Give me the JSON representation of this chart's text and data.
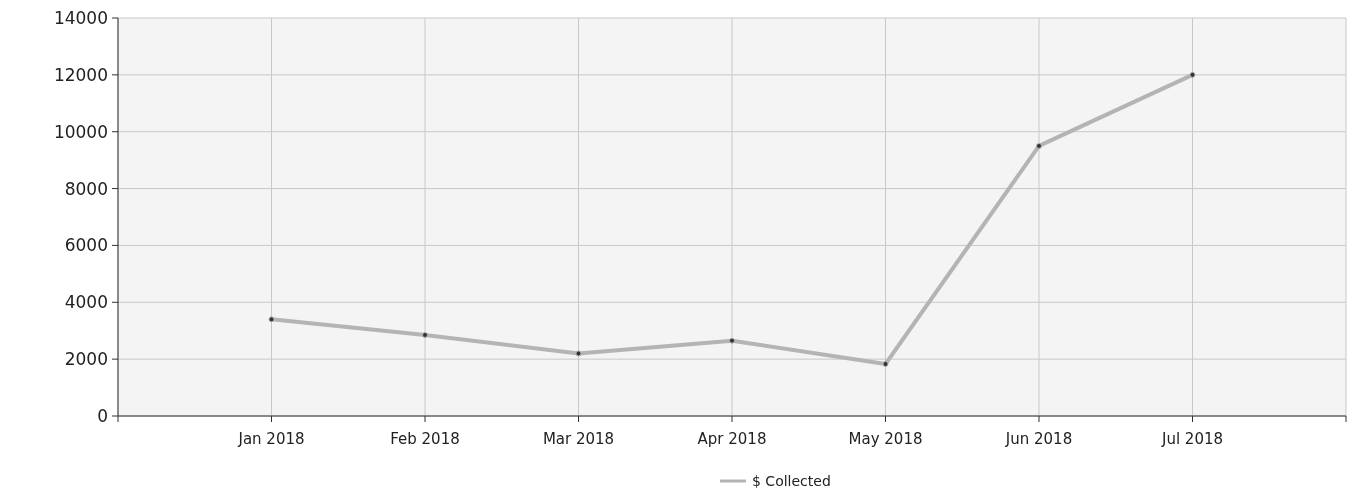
{
  "chart_data": {
    "type": "line",
    "categories": [
      null,
      "Jan 2018",
      "Feb 2018",
      "Mar 2018",
      "Apr 2018",
      "May 2018",
      "Jun 2018",
      "Jul 2018",
      null
    ],
    "series": [
      {
        "name": "$ Collected",
        "color": "#b4b4b4",
        "values": [
          null,
          3400,
          2850,
          2200,
          2650,
          1830,
          9500,
          12000,
          null
        ]
      }
    ],
    "ylim": [
      0,
      14000
    ],
    "yticks": [
      0,
      2000,
      4000,
      6000,
      8000,
      10000,
      12000,
      14000
    ],
    "grid": true,
    "legend": "bottom",
    "marker": "circle",
    "line_style": "solid"
  }
}
